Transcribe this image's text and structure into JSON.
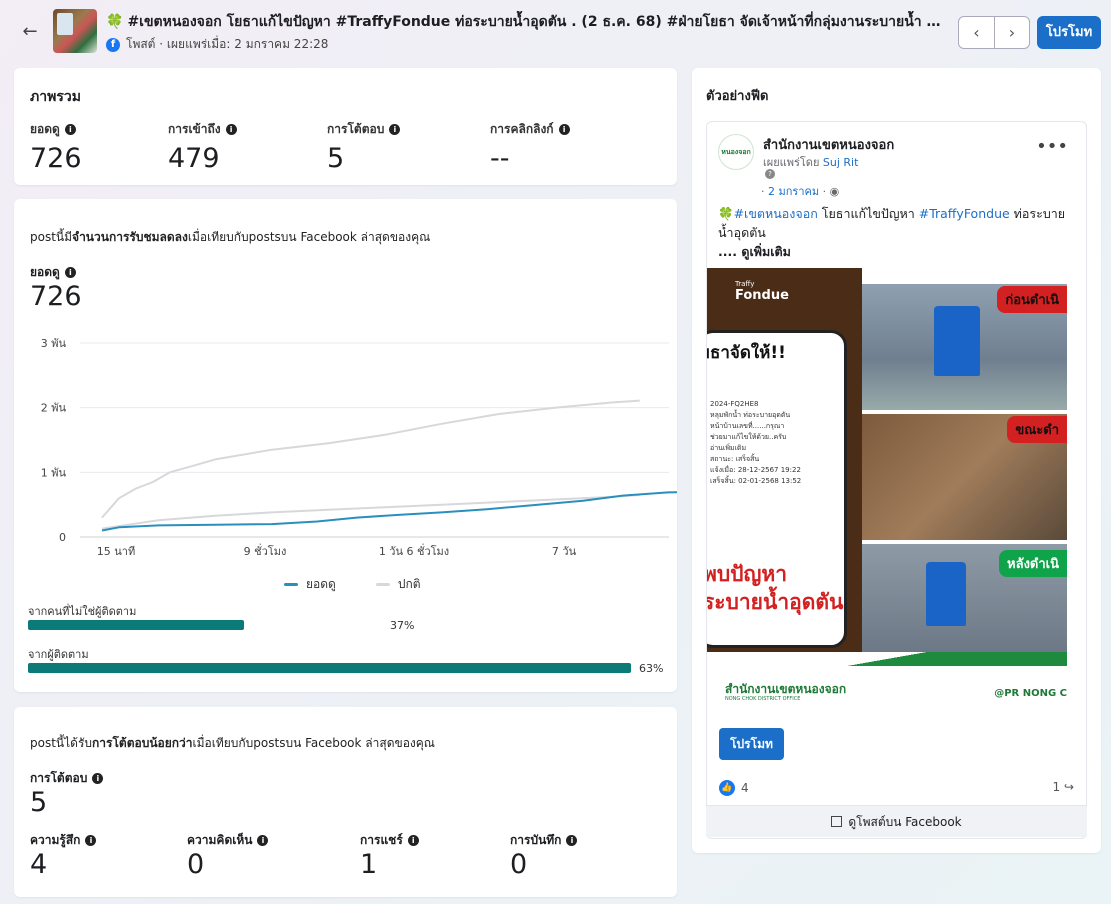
{
  "header": {
    "title_icon": "🍀",
    "title": "#เขตหนองจอก โยธาแก้ไขปัญหา #TraffyFondue ท่อระบายน้ำอุดตัน . (2 ธ.ค. 68) #ฝ่ายโยธา จัดเจ้าหน้าที่กลุ่มงานระบายน้ำ ดำเนินก...",
    "meta": "โพสต์ · เผยแพร่เมื่อ: 2 มกราคม 22:28",
    "promote_label": "โปรโมท",
    "prev_icon": "‹",
    "next_icon": "›"
  },
  "overview": {
    "title": "ภาพรวม",
    "metrics": [
      {
        "label": "ยอดดู",
        "value": "726"
      },
      {
        "label": "การเข้าถึง",
        "value": "479"
      },
      {
        "label": "การโต้ตอบ",
        "value": "5"
      },
      {
        "label": "การคลิกลิงก์",
        "value": "--"
      }
    ]
  },
  "reach": {
    "compare_prefix": "postนี้มี",
    "compare_bold": "จำนวนการรับชมลดลง",
    "compare_suffix": "เมื่อเทียบกับpostsบน Facebook ล่าสุดของคุณ",
    "label": "ยอดดู",
    "value": "726",
    "breakdown": [
      {
        "label": "จากคนที่ไม่ใช่ผู้ติดตาม",
        "percent": 37,
        "percent_label": "37%"
      },
      {
        "label": "จากผู้ติดตาม",
        "percent": 63,
        "percent_label": "63%"
      }
    ]
  },
  "chart_data": {
    "type": "line",
    "x": [
      "15 นาที",
      "9 ชั่วโมง",
      "1 วัน 6 ชั่วโมง",
      "7 วัน"
    ],
    "yticks": [
      "0",
      "1 พัน",
      "2 พัน",
      "3 พัน"
    ],
    "ylim": [
      0,
      3000
    ],
    "legend_placement": "bottom",
    "grid": true,
    "series": [
      {
        "name": "ยอดดู",
        "color": "#2a8fbd",
        "points": [
          [
            0,
            100
          ],
          [
            0.03,
            150
          ],
          [
            0.1,
            180
          ],
          [
            0.2,
            190
          ],
          [
            0.3,
            200
          ],
          [
            0.38,
            240
          ],
          [
            0.45,
            300
          ],
          [
            0.52,
            340
          ],
          [
            0.6,
            380
          ],
          [
            0.68,
            430
          ],
          [
            0.76,
            490
          ],
          [
            0.85,
            560
          ],
          [
            0.92,
            640
          ],
          [
            1.0,
            690
          ],
          [
            1.08,
            700
          ],
          [
            1.1,
            710
          ]
        ]
      },
      {
        "name": "ปกติ",
        "color": "#d6d8db",
        "points": [
          [
            0,
            130
          ],
          [
            0.1,
            260
          ],
          [
            0.2,
            330
          ],
          [
            0.3,
            380
          ],
          [
            0.4,
            420
          ],
          [
            0.5,
            460
          ],
          [
            0.6,
            500
          ],
          [
            0.7,
            540
          ],
          [
            0.8,
            580
          ],
          [
            0.9,
            620
          ],
          [
            0.95,
            650
          ]
        ]
      },
      {
        "name": "",
        "color": "#d6d8db",
        "points": [
          [
            0,
            300
          ],
          [
            0.03,
            600
          ],
          [
            0.06,
            750
          ],
          [
            0.09,
            850
          ],
          [
            0.12,
            1000
          ],
          [
            0.16,
            1100
          ],
          [
            0.2,
            1200
          ],
          [
            0.3,
            1350
          ],
          [
            0.4,
            1450
          ],
          [
            0.5,
            1580
          ],
          [
            0.6,
            1750
          ],
          [
            0.7,
            1900
          ],
          [
            0.8,
            2000
          ],
          [
            0.9,
            2080
          ],
          [
            0.95,
            2110
          ]
        ]
      }
    ]
  },
  "engagement": {
    "compare_prefix": "postนี้ได้รับ",
    "compare_bold": "การโต้ตอบน้อยกว่า",
    "compare_suffix": "เมื่อเทียบกับpostsบน Facebook ล่าสุดของคุณ",
    "label": "การโต้ตอบ",
    "value": "5",
    "metrics": [
      {
        "label": "ความรู้สึก",
        "value": "4"
      },
      {
        "label": "ความคิดเห็น",
        "value": "0"
      },
      {
        "label": "การแชร์",
        "value": "1"
      },
      {
        "label": "การบันทึก",
        "value": "0"
      }
    ]
  },
  "preview": {
    "title": "ตัวอย่างฟีด",
    "page_name": "สำนักงานเขตหนองจอก",
    "page_avatar_text": "หนองจอก",
    "published_by": "เผยแพร่โดย",
    "publisher": "Suj Rit",
    "date": "2 มกราคม",
    "post_tag1": "#เขตหนองจอก",
    "post_text1": " โยธาแก้ไขปัญหา ",
    "post_tag2": "#TraffyFondue",
    "post_text2": " ท่อระบายน้ำอุดตัน",
    "post_more": ".... ดูเพิ่มเติม",
    "image": {
      "brand_traffy": "Traffy",
      "brand_fondue": "Fondue",
      "phone_headline": "ยธาจัดให้!!",
      "phone_lines": [
        "2024-FQ2HE8",
        "หลุมพักน้ำ ท่อระบายอุดตัน",
        "หน้าบ้านเลขที่......กรุณา",
        "ช่วยมาแก้ไขให้ด้วย..ครับ",
        "อ่านเพิ่มเติม",
        "สถานะ: เสร็จสิ้น",
        "แจ้งเมื่อ: 28-12-2567 19:22",
        "เสร็จสิ้น: 02-01-2568 13:52"
      ],
      "problem_text": "พบปัญหา ระบายน้ำอุดตัน",
      "tag_before": "ก่อนดำเนิ",
      "tag_during": "ขณะดำ",
      "tag_after": "หลังดำเนิ",
      "office_name": "สำนักงานเขตหนองจอก",
      "office_en": "NONG CHOK DISTRICT OFFICE",
      "pr_handle": "@PR NONG C"
    },
    "promote_label": "โปรโมท",
    "reactions_count": "4",
    "shares_count": "1",
    "view_on_fb": "ดูโพสต์บน Facebook"
  }
}
